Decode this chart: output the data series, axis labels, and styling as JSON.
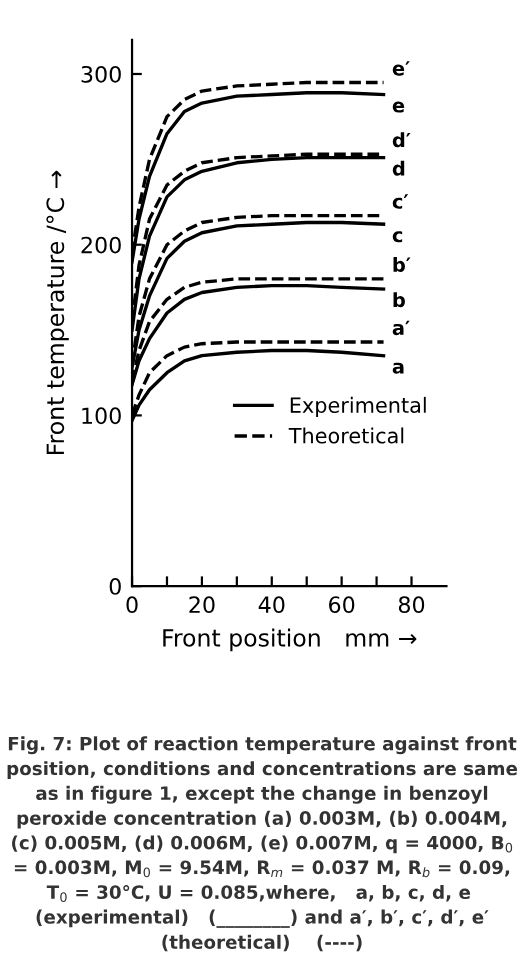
{
  "chart_data": {
    "type": "line",
    "xlabel": "Front position   mm →",
    "ylabel": "Front temperature /°C →",
    "x": [
      0,
      2,
      5,
      10,
      15,
      20,
      30,
      40,
      50,
      60,
      72
    ],
    "series": [
      {
        "name": "a",
        "color": "#000000",
        "line_style": "solid",
        "values": [
          97,
          106,
          115,
          125,
          132,
          135,
          137,
          138,
          138,
          137,
          135
        ]
      },
      {
        "name": "a′",
        "color": "#000000",
        "line_style": "dashed",
        "values": [
          100,
          112,
          125,
          135,
          140,
          142,
          143,
          143,
          143,
          143,
          143
        ]
      },
      {
        "name": "b",
        "color": "#000000",
        "line_style": "solid",
        "values": [
          118,
          132,
          145,
          160,
          168,
          172,
          175,
          176,
          176,
          175,
          174
        ]
      },
      {
        "name": "b′",
        "color": "#000000",
        "line_style": "dashed",
        "values": [
          120,
          138,
          155,
          168,
          175,
          178,
          180,
          180,
          180,
          180,
          180
        ]
      },
      {
        "name": "c",
        "color": "#000000",
        "line_style": "solid",
        "values": [
          128,
          150,
          170,
          192,
          202,
          207,
          211,
          212,
          213,
          213,
          212
        ]
      },
      {
        "name": "c′",
        "color": "#000000",
        "line_style": "dashed",
        "values": [
          130,
          158,
          180,
          200,
          208,
          213,
          216,
          217,
          217,
          217,
          217
        ]
      },
      {
        "name": "d",
        "color": "#000000",
        "line_style": "solid",
        "values": [
          150,
          180,
          205,
          228,
          238,
          243,
          248,
          250,
          251,
          251,
          251
        ]
      },
      {
        "name": "d′",
        "color": "#000000",
        "line_style": "dashed",
        "values": [
          155,
          188,
          215,
          235,
          243,
          248,
          251,
          252,
          253,
          253,
          253
        ]
      },
      {
        "name": "e",
        "color": "#000000",
        "line_style": "solid",
        "values": [
          190,
          215,
          240,
          265,
          278,
          283,
          287,
          288,
          289,
          289,
          288
        ]
      },
      {
        "name": "e′",
        "color": "#000000",
        "line_style": "dashed",
        "values": [
          195,
          222,
          250,
          275,
          285,
          290,
          293,
          294,
          295,
          295,
          295
        ]
      }
    ],
    "xlim": [
      0,
      90
    ],
    "ylim": [
      0,
      320
    ],
    "xticks": [
      0,
      {
        "value": 10,
        "label": null
      },
      20,
      {
        "value": 30,
        "label": null
      },
      40,
      {
        "value": 50,
        "label": null
      },
      60,
      {
        "value": 70,
        "label": null
      },
      80
    ],
    "yticks": [
      0,
      100,
      200,
      300
    ],
    "grid": false,
    "legend": "right",
    "marker": "none",
    "annotations": [
      "Experimental",
      "Theoretical",
      "Fig. 7: Plot of reaction temperature against front position, conditions and concentrations are same as in figure 1, except the change in benzoyl peroxide concentration (a) 0.003M, (b) 0.004M, (c) 0.005M, (d) 0.006M, (e) 0.007M, q = 4000, B$_{0}$ = 0.003M, M$_{0}$ = 9.54M, R$_{m}$ = 0.037 M, R$_{b}$ = 0.09, T$_{0}$ = 30°C, U = 0.085,where,   a, b, c, d, e  (experimental)   (________) and a′, b′, c′, d′, e′ (theoretical)    (----)"
    ]
  }
}
